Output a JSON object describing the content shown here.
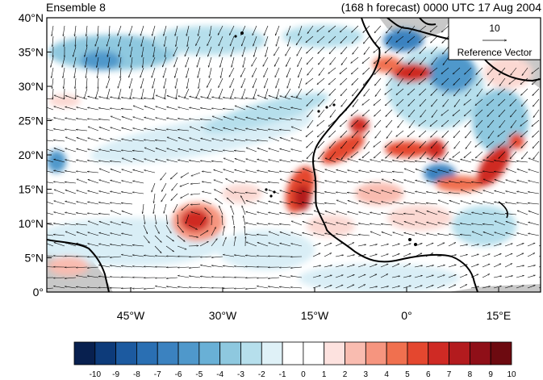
{
  "header": {
    "left_title": "Ensemble 8",
    "right_title": "(168 h forecast) 0000 UTC 17 Aug 2004"
  },
  "axes": {
    "lat_labels": [
      "40°N",
      "35°N",
      "30°N",
      "25°N",
      "20°N",
      "15°N",
      "10°N",
      "5°N",
      "0°"
    ],
    "lon_labels": [
      "45°W",
      "30°W",
      "15°W",
      "0°",
      "15°E"
    ]
  },
  "reference_vector": {
    "value": "10",
    "label": "Reference Vector"
  },
  "colorbar": {
    "labels": [
      "-10",
      "-9",
      "-8",
      "-7",
      "-6",
      "-5",
      "-4",
      "-3",
      "-2",
      "-1",
      "0",
      "1",
      "2",
      "3",
      "4",
      "5",
      "6",
      "7",
      "8",
      "9",
      "10"
    ],
    "colors": [
      "#08204f",
      "#0d3b7a",
      "#1c5aa0",
      "#2a6fb3",
      "#3b82c0",
      "#4f98cb",
      "#69b0d6",
      "#8ec8df",
      "#b6dfec",
      "#dff1f7",
      "#ffffff",
      "#ffffff",
      "#fde2df",
      "#f9bcb0",
      "#f6957f",
      "#f0704f",
      "#e4472f",
      "#cf2a24",
      "#b31b1e",
      "#8f0f18",
      "#6d0a10"
    ]
  },
  "style": {
    "ocean": "#ffffff",
    "missing": "#c8c8c8",
    "coast": "#000000",
    "pos_strong": "#c4262a",
    "pos_mid": "#f09080",
    "pos_weak": "#fbd8d2",
    "neg_strong": "#3b82c0",
    "neg_mid": "#8ec8df",
    "neg_weak": "#d9eef6"
  }
}
